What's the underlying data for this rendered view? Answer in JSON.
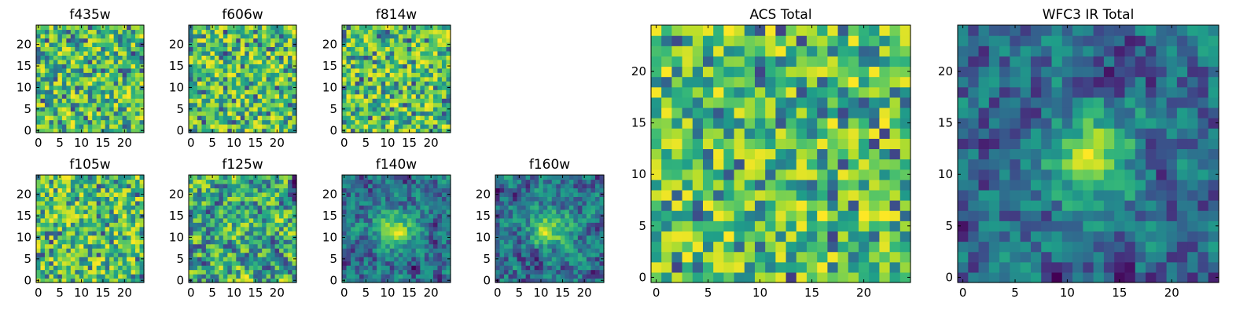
{
  "chart_data": [
    {
      "id": "f435w",
      "type": "heatmap",
      "title": "f435w",
      "size": 25,
      "xticks": [
        0,
        5,
        10,
        15,
        20
      ],
      "yticks": [
        0,
        5,
        10,
        15,
        20
      ],
      "xlim": [
        -0.5,
        24.5
      ],
      "ylim": [
        -0.5,
        24.5
      ],
      "seed": 11,
      "texture": "noisy",
      "blob": null
    },
    {
      "id": "f606w",
      "type": "heatmap",
      "title": "f606w",
      "size": 25,
      "xticks": [
        0,
        5,
        10,
        15,
        20
      ],
      "yticks": [
        0,
        5,
        10,
        15,
        20
      ],
      "xlim": [
        -0.5,
        24.5
      ],
      "ylim": [
        -0.5,
        24.5
      ],
      "seed": 23,
      "texture": "noisy",
      "blob": null
    },
    {
      "id": "f814w",
      "type": "heatmap",
      "title": "f814w",
      "size": 25,
      "xticks": [
        0,
        5,
        10,
        15,
        20
      ],
      "yticks": [
        0,
        5,
        10,
        15,
        20
      ],
      "xlim": [
        -0.5,
        24.5
      ],
      "ylim": [
        -0.5,
        24.5
      ],
      "seed": 37,
      "texture": "noisy",
      "blob": null
    },
    {
      "id": "f105w",
      "type": "heatmap",
      "title": "f105w",
      "size": 25,
      "xticks": [
        0,
        5,
        10,
        15,
        20
      ],
      "yticks": [
        0,
        5,
        10,
        15,
        20
      ],
      "xlim": [
        -0.5,
        24.5
      ],
      "ylim": [
        -0.5,
        24.5
      ],
      "seed": 41,
      "texture": "noisy",
      "blob": null
    },
    {
      "id": "f125w",
      "type": "heatmap",
      "title": "f125w",
      "size": 25,
      "xticks": [
        0,
        5,
        10,
        15,
        20
      ],
      "yticks": [
        0,
        5,
        10,
        15,
        20
      ],
      "xlim": [
        -0.5,
        24.5
      ],
      "ylim": [
        -0.5,
        24.5
      ],
      "seed": 53,
      "texture": "smooth",
      "blob": null
    },
    {
      "id": "f140w",
      "type": "heatmap",
      "title": "f140w",
      "size": 25,
      "xticks": [
        0,
        5,
        10,
        15,
        20
      ],
      "yticks": [
        0,
        5,
        10,
        15,
        20
      ],
      "xlim": [
        -0.5,
        24.5
      ],
      "ylim": [
        -0.5,
        24.5
      ],
      "seed": 67,
      "texture": "smooth",
      "blob": [
        12,
        12
      ]
    },
    {
      "id": "f160w",
      "type": "heatmap",
      "title": "f160w",
      "size": 25,
      "xticks": [
        0,
        5,
        10,
        15,
        20
      ],
      "yticks": [
        0,
        5,
        10,
        15,
        20
      ],
      "xlim": [
        -0.5,
        24.5
      ],
      "ylim": [
        -0.5,
        24.5
      ],
      "seed": 79,
      "texture": "smooth",
      "blob": [
        12,
        12
      ]
    },
    {
      "id": "acs_total",
      "type": "heatmap",
      "title": "ACS Total",
      "size": 25,
      "xticks": [
        0,
        5,
        10,
        15,
        20
      ],
      "yticks": [
        0,
        5,
        10,
        15,
        20
      ],
      "xlim": [
        -0.5,
        24.5
      ],
      "ylim": [
        -0.5,
        24.5
      ],
      "seed": 97,
      "texture": "noisy",
      "blob": null
    },
    {
      "id": "wfc3_ir_total",
      "type": "heatmap",
      "title": "WFC3 IR Total",
      "size": 25,
      "xticks": [
        0,
        5,
        10,
        15,
        20
      ],
      "yticks": [
        0,
        5,
        10,
        15,
        20
      ],
      "xlim": [
        -0.5,
        24.5
      ],
      "ylim": [
        -0.5,
        24.5
      ],
      "seed": 101,
      "texture": "smooth",
      "blob": [
        12,
        12
      ]
    }
  ],
  "colormap": "viridis"
}
